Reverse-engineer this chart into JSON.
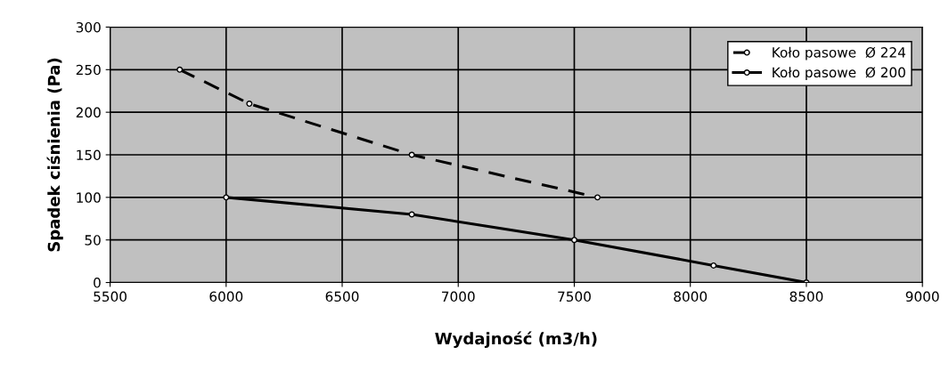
{
  "chart_data": {
    "type": "line",
    "xlabel": "Wydajność (m3/h)",
    "ylabel": "Spadek ciśnienia (Pa)",
    "xlim": [
      5500,
      9000
    ],
    "xticks": [
      5500,
      6000,
      6500,
      7000,
      7500,
      8000,
      8500,
      9000
    ],
    "ylim": [
      0,
      300
    ],
    "yticks": [
      0,
      50,
      100,
      150,
      200,
      250,
      300
    ],
    "grid": true,
    "legend": "top right",
    "marker": "circle",
    "series": [
      {
        "name": "Koło pasowe  Ø 224",
        "color": "#000000",
        "line_style": "dashed",
        "x": [
          5800,
          6100,
          6800,
          7600
        ],
        "values": [
          250,
          210,
          150,
          100
        ]
      },
      {
        "name": "Koło pasowe  Ø 200",
        "color": "#000000",
        "line_style": "solid",
        "x": [
          6000,
          6800,
          7500,
          8100,
          8500
        ],
        "values": [
          100,
          80,
          50,
          20,
          0
        ]
      }
    ]
  }
}
